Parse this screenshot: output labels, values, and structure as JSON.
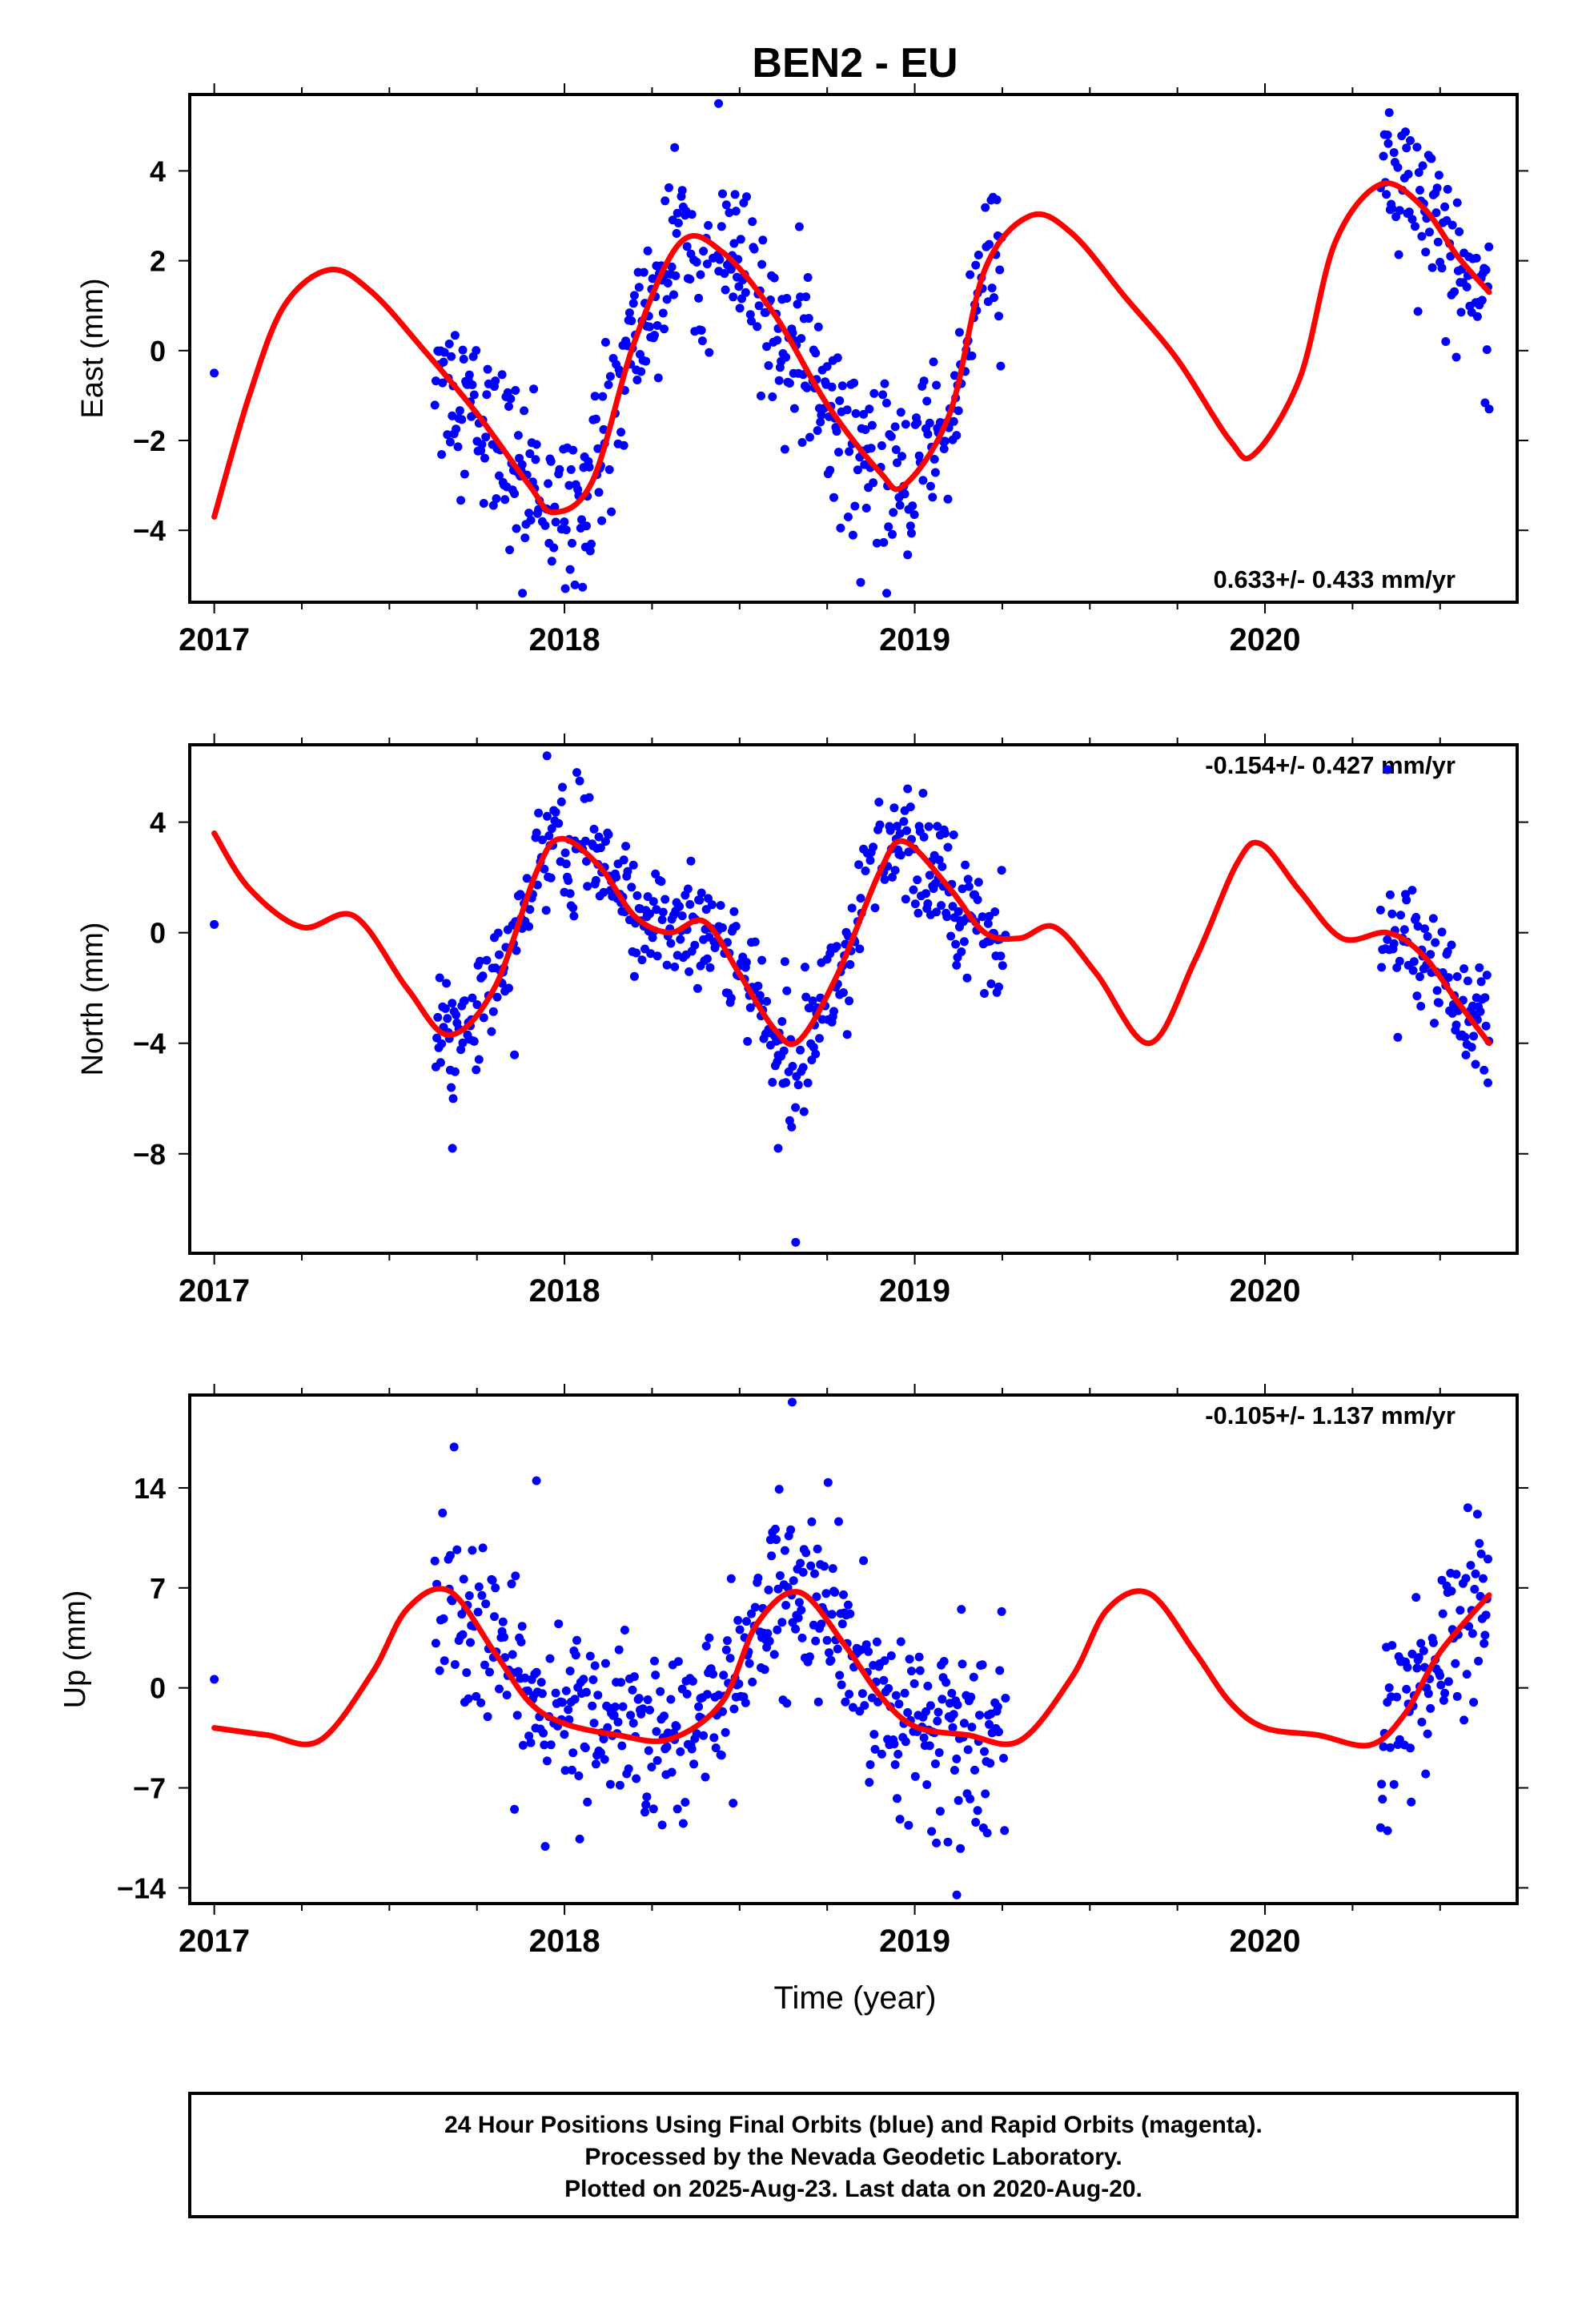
{
  "figure": {
    "title": "BEN2 - EU",
    "xlabel": "Time (year)",
    "footer": [
      "24 Hour Positions Using Final Orbits (blue) and Rapid Orbits (magenta).",
      "Processed by the Nevada Geodetic Laboratory.",
      "Plotted on 2025-Aug-23. Last data on 2020-Aug-20."
    ]
  },
  "colors": {
    "points": "#0000ff",
    "fit": "#ff0000",
    "frame": "#000000"
  },
  "chart_data": [
    {
      "type": "scatter",
      "panel": "east",
      "ylabel": "East (mm)",
      "rate": "0.633+/- 0.433 mm/yr",
      "rate_position": "bottom-right",
      "xlim": [
        2016.93,
        2020.72
      ],
      "ylim": [
        -5.6,
        5.7
      ],
      "x_ticks": [
        "2017",
        "2018",
        "2019",
        "2020"
      ],
      "y_ticks": [
        -4,
        -2,
        0,
        2,
        4
      ],
      "y_tick_labels": [
        "−4",
        "−2",
        "0",
        "2",
        "4"
      ],
      "grid": false,
      "fit": {
        "name": "fit",
        "x": [
          2017.0,
          2017.1,
          2017.2,
          2017.33,
          2017.45,
          2017.6,
          2017.75,
          2017.9,
          2017.97,
          2018.08,
          2018.2,
          2018.33,
          2018.45,
          2018.6,
          2018.75,
          2018.9,
          2018.97,
          2019.1,
          2019.2,
          2019.33,
          2019.45,
          2019.6,
          2019.75,
          2019.9,
          2019.97,
          2020.1,
          2020.2,
          2020.33,
          2020.45,
          2020.55,
          2020.64
        ],
        "y": [
          -3.7,
          -1.0,
          1.0,
          1.8,
          1.3,
          0.0,
          -1.4,
          -3.0,
          -3.6,
          -2.9,
          0.2,
          2.4,
          2.2,
          0.8,
          -1.2,
          -2.7,
          -3.0,
          -1.4,
          1.8,
          3.0,
          2.6,
          1.2,
          -0.2,
          -2.0,
          -2.3,
          -0.6,
          2.4,
          3.7,
          3.2,
          2.1,
          1.3
        ]
      },
      "points": {
        "name": "daily positions",
        "segments": [
          [
            2017.0,
            2017.0
          ],
          [
            2017.63,
            2019.26
          ],
          [
            2020.33,
            2020.64
          ]
        ],
        "scatter_sd": 0.9,
        "outliers": [
          {
            "x": 2017.0,
            "y": -0.5
          },
          {
            "x": 2018.44,
            "y": 5.5
          },
          {
            "x": 2017.88,
            "y": -5.4
          },
          {
            "x": 2018.92,
            "y": -5.4
          },
          {
            "x": 2020.35,
            "y": 4.8
          },
          {
            "x": 2020.64,
            "y": -1.3
          }
        ]
      }
    },
    {
      "type": "scatter",
      "panel": "north",
      "ylabel": "North (mm)",
      "rate": "-0.154+/- 0.427 mm/yr",
      "rate_position": "top-right",
      "xlim": [
        2016.93,
        2020.72
      ],
      "ylim": [
        -11.6,
        6.8
      ],
      "x_ticks": [
        "2017",
        "2018",
        "2019",
        "2020"
      ],
      "y_ticks": [
        -8,
        -4,
        0,
        4
      ],
      "y_tick_labels": [
        "−8",
        "−4",
        "0",
        "4"
      ],
      "grid": false,
      "fit": {
        "name": "fit",
        "x": [
          2017.0,
          2017.1,
          2017.25,
          2017.4,
          2017.55,
          2017.67,
          2017.8,
          2017.92,
          2017.99,
          2018.1,
          2018.2,
          2018.3,
          2018.4,
          2018.5,
          2018.6,
          2018.67,
          2018.78,
          2018.9,
          2018.97,
          2019.1,
          2019.2,
          2019.3,
          2019.4,
          2019.52,
          2019.67,
          2019.8,
          2019.92,
          2019.99,
          2020.1,
          2020.22,
          2020.35,
          2020.45,
          2020.55,
          2020.64
        ],
        "y": [
          3.6,
          1.6,
          0.2,
          0.6,
          -2.0,
          -3.7,
          -2.0,
          2.2,
          3.4,
          2.4,
          0.6,
          0.0,
          0.4,
          -1.5,
          -3.5,
          -3.9,
          -1.5,
          2.2,
          3.3,
          1.6,
          0.0,
          -0.2,
          0.2,
          -1.5,
          -4.0,
          -1.0,
          2.5,
          3.2,
          1.5,
          -0.2,
          0.0,
          -0.8,
          -2.5,
          -4.0
        ]
      },
      "points": {
        "name": "daily positions",
        "segments": [
          [
            2017.0,
            2017.0
          ],
          [
            2017.63,
            2019.26
          ],
          [
            2020.33,
            2020.64
          ]
        ],
        "scatter_sd": 1.1,
        "outliers": [
          {
            "x": 2017.0,
            "y": 0.3
          },
          {
            "x": 2017.95,
            "y": 6.4
          },
          {
            "x": 2017.68,
            "y": -7.8
          },
          {
            "x": 2018.61,
            "y": -7.8
          },
          {
            "x": 2018.66,
            "y": -11.2
          },
          {
            "x": 2020.35,
            "y": 5.9
          }
        ]
      }
    },
    {
      "type": "scatter",
      "panel": "up",
      "ylabel": "Up (mm)",
      "rate": "-0.105+/- 1.137 mm/yr",
      "rate_position": "top-right",
      "xlim": [
        2016.93,
        2020.72
      ],
      "ylim": [
        -15.1,
        20.5
      ],
      "x_ticks": [
        "2017",
        "2018",
        "2019",
        "2020"
      ],
      "y_ticks": [
        -14,
        -7,
        0,
        7,
        14
      ],
      "y_tick_labels": [
        "−14",
        "−7",
        "0",
        "7",
        "14"
      ],
      "grid": false,
      "fit": {
        "name": "fit",
        "x": [
          2017.0,
          2017.15,
          2017.3,
          2017.45,
          2017.55,
          2017.67,
          2017.8,
          2017.9,
          2018.0,
          2018.15,
          2018.3,
          2018.45,
          2018.55,
          2018.67,
          2018.8,
          2018.9,
          2019.0,
          2019.15,
          2019.3,
          2019.45,
          2019.55,
          2019.67,
          2019.8,
          2019.9,
          2020.0,
          2020.15,
          2020.3,
          2020.4,
          2020.5,
          2020.64
        ],
        "y": [
          -2.8,
          -3.3,
          -3.7,
          1.0,
          5.5,
          6.8,
          2.5,
          -1.0,
          -2.5,
          -3.3,
          -3.6,
          -1.0,
          4.5,
          6.7,
          3.0,
          -0.5,
          -2.7,
          -3.3,
          -3.7,
          0.8,
          5.5,
          6.6,
          2.5,
          -1.0,
          -2.8,
          -3.3,
          -4.0,
          -1.8,
          2.5,
          6.5
        ]
      },
      "points": {
        "name": "daily positions",
        "segments": [
          [
            2017.0,
            2017.0
          ],
          [
            2017.63,
            2019.26
          ],
          [
            2020.33,
            2020.64
          ]
        ],
        "scatter_sd": 3.0,
        "outliers": [
          {
            "x": 2017.0,
            "y": 0.6
          },
          {
            "x": 2018.65,
            "y": 20.0
          },
          {
            "x": 2017.92,
            "y": 14.5
          },
          {
            "x": 2019.12,
            "y": -14.5
          },
          {
            "x": 2020.35,
            "y": -10.0
          }
        ]
      }
    }
  ]
}
